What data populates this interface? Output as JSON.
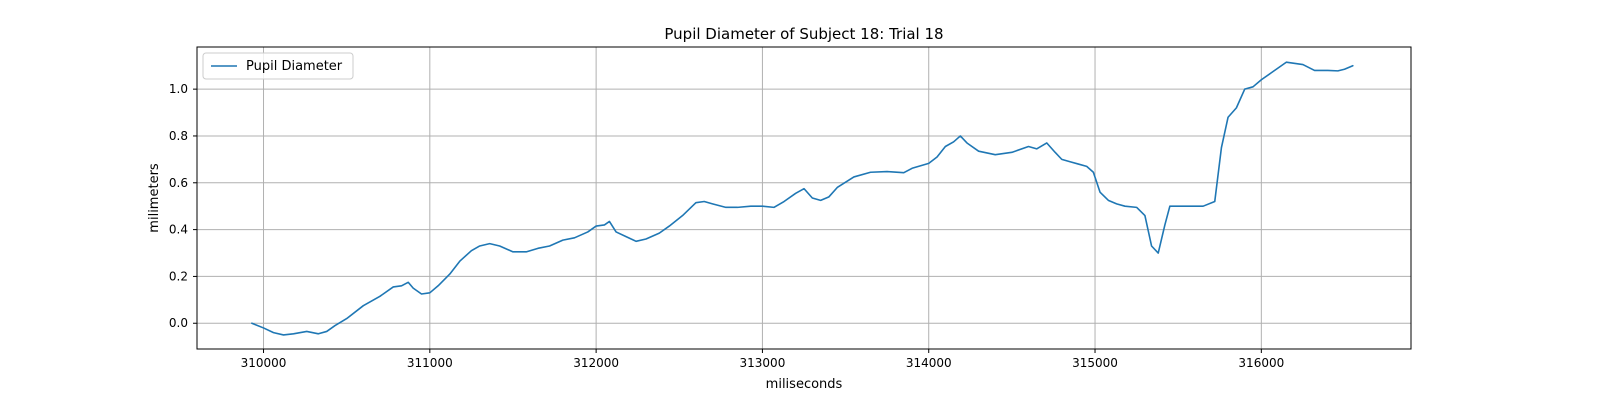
{
  "chart_data": {
    "type": "line",
    "title": "Pupil Diameter of Subject 18: Trial 18",
    "xlabel": "miliseconds",
    "ylabel": "milimeters",
    "xlim": [
      309600,
      316900
    ],
    "ylim": [
      -0.11,
      1.18
    ],
    "x_ticks": [
      310000,
      311000,
      312000,
      313000,
      314000,
      315000,
      316000
    ],
    "x_tick_labels": [
      "310000",
      "311000",
      "312000",
      "313000",
      "314000",
      "315000",
      "316000"
    ],
    "y_ticks": [
      0.0,
      0.2,
      0.4,
      0.6,
      0.8,
      1.0
    ],
    "y_tick_labels": [
      "0.0",
      "0.2",
      "0.4",
      "0.6",
      "0.8",
      "1.0"
    ],
    "grid": true,
    "legend": "upper-left",
    "colors": {
      "series": "#1f77b4",
      "grid": "#b0b0b0",
      "legend_border": "#cccccc"
    },
    "series": [
      {
        "name": "Pupil Diameter",
        "points": [
          [
            309930,
            0.0
          ],
          [
            310000,
            -0.02
          ],
          [
            310060,
            -0.04
          ],
          [
            310120,
            -0.05
          ],
          [
            310180,
            -0.045
          ],
          [
            310260,
            -0.035
          ],
          [
            310330,
            -0.045
          ],
          [
            310380,
            -0.035
          ],
          [
            310430,
            -0.01
          ],
          [
            310500,
            0.02
          ],
          [
            310600,
            0.075
          ],
          [
            310700,
            0.115
          ],
          [
            310780,
            0.155
          ],
          [
            310830,
            0.16
          ],
          [
            310870,
            0.175
          ],
          [
            310900,
            0.15
          ],
          [
            310950,
            0.125
          ],
          [
            311000,
            0.13
          ],
          [
            311050,
            0.16
          ],
          [
            311120,
            0.21
          ],
          [
            311180,
            0.265
          ],
          [
            311250,
            0.31
          ],
          [
            311300,
            0.33
          ],
          [
            311360,
            0.34
          ],
          [
            311420,
            0.33
          ],
          [
            311500,
            0.305
          ],
          [
            311580,
            0.305
          ],
          [
            311650,
            0.32
          ],
          [
            311720,
            0.33
          ],
          [
            311800,
            0.355
          ],
          [
            311870,
            0.365
          ],
          [
            311950,
            0.39
          ],
          [
            312000,
            0.415
          ],
          [
            312050,
            0.42
          ],
          [
            312080,
            0.435
          ],
          [
            312120,
            0.39
          ],
          [
            312180,
            0.37
          ],
          [
            312240,
            0.35
          ],
          [
            312300,
            0.36
          ],
          [
            312380,
            0.385
          ],
          [
            312440,
            0.415
          ],
          [
            312520,
            0.46
          ],
          [
            312600,
            0.515
          ],
          [
            312650,
            0.52
          ],
          [
            312700,
            0.51
          ],
          [
            312780,
            0.495
          ],
          [
            312850,
            0.495
          ],
          [
            312930,
            0.5
          ],
          [
            313000,
            0.5
          ],
          [
            313070,
            0.495
          ],
          [
            313130,
            0.52
          ],
          [
            313200,
            0.555
          ],
          [
            313250,
            0.575
          ],
          [
            313300,
            0.535
          ],
          [
            313350,
            0.525
          ],
          [
            313400,
            0.54
          ],
          [
            313450,
            0.58
          ],
          [
            313550,
            0.625
          ],
          [
            313650,
            0.645
          ],
          [
            313750,
            0.648
          ],
          [
            313850,
            0.643
          ],
          [
            313900,
            0.662
          ],
          [
            314000,
            0.683
          ],
          [
            314050,
            0.71
          ],
          [
            314100,
            0.755
          ],
          [
            314150,
            0.775
          ],
          [
            314190,
            0.8
          ],
          [
            314230,
            0.77
          ],
          [
            314300,
            0.735
          ],
          [
            314400,
            0.72
          ],
          [
            314500,
            0.73
          ],
          [
            314600,
            0.755
          ],
          [
            314650,
            0.745
          ],
          [
            314710,
            0.77
          ],
          [
            314760,
            0.73
          ],
          [
            314800,
            0.7
          ],
          [
            314850,
            0.69
          ],
          [
            314900,
            0.68
          ],
          [
            314950,
            0.67
          ],
          [
            314990,
            0.645
          ],
          [
            315030,
            0.56
          ],
          [
            315080,
            0.525
          ],
          [
            315130,
            0.51
          ],
          [
            315180,
            0.5
          ],
          [
            315250,
            0.495
          ],
          [
            315300,
            0.46
          ],
          [
            315340,
            0.33
          ],
          [
            315380,
            0.3
          ],
          [
            315420,
            0.42
          ],
          [
            315450,
            0.5
          ],
          [
            315550,
            0.5
          ],
          [
            315650,
            0.5
          ],
          [
            315720,
            0.52
          ],
          [
            315760,
            0.75
          ],
          [
            315800,
            0.88
          ],
          [
            315850,
            0.92
          ],
          [
            315900,
            1.0
          ],
          [
            315950,
            1.01
          ],
          [
            316000,
            1.04
          ],
          [
            316060,
            1.07
          ],
          [
            316150,
            1.115
          ],
          [
            316250,
            1.105
          ],
          [
            316320,
            1.08
          ],
          [
            316400,
            1.08
          ],
          [
            316460,
            1.078
          ],
          [
            316500,
            1.085
          ],
          [
            316550,
            1.1
          ]
        ]
      }
    ]
  }
}
